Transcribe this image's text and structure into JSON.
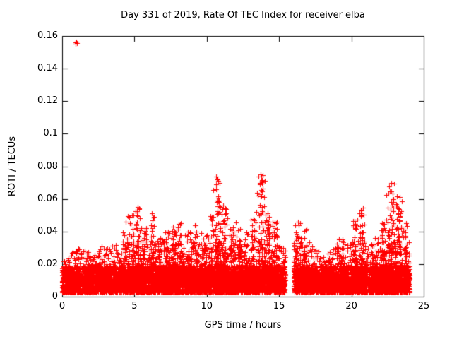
{
  "chart_data": {
    "type": "scatter",
    "title": "Day 331 of 2019, Rate Of TEC Index for receiver elba",
    "xlabel": "GPS time / hours",
    "ylabel": "ROTI / TECUs",
    "xlim": [
      0,
      25
    ],
    "ylim": [
      0,
      0.16
    ],
    "xtick_values": [
      0,
      5,
      10,
      15,
      20,
      25
    ],
    "xtick_labels": [
      "0",
      "5",
      "10",
      "15",
      "20",
      "25"
    ],
    "ytick_values": [
      0,
      0.02,
      0.04,
      0.06,
      0.08,
      0.1,
      0.12,
      0.14,
      0.16
    ],
    "ytick_labels": [
      "0",
      "0.02",
      "0.04",
      "0.06",
      "0.08",
      "0.1",
      "0.12",
      "0.14",
      "0.16"
    ],
    "grid": false,
    "legend": "none",
    "marker": "+",
    "marker_color": "#ff0000",
    "axis_color": "#000000",
    "background_color": "#ffffff",
    "data_x_range": [
      0,
      24.05
    ],
    "data_gap_hours": [
      15.45,
      16.0
    ],
    "outlier_points": [
      [
        0.93,
        0.156
      ],
      [
        0.98,
        0.1565
      ],
      [
        1.02,
        0.1558
      ],
      [
        0.95,
        0.1552
      ]
    ],
    "base_band": {
      "ymin": 0.0025,
      "ymax": 0.019,
      "points": 7000
    },
    "mid_band": {
      "points": 2200,
      "cap": 0.034
    },
    "envelope_max_by_halfhour": [
      [
        0.25,
        0.022
      ],
      [
        0.75,
        0.028
      ],
      [
        1.25,
        0.03
      ],
      [
        1.75,
        0.028
      ],
      [
        2.25,
        0.026
      ],
      [
        2.75,
        0.032
      ],
      [
        3.25,
        0.03
      ],
      [
        3.75,
        0.034
      ],
      [
        4.25,
        0.04
      ],
      [
        4.75,
        0.05
      ],
      [
        5.25,
        0.055
      ],
      [
        5.75,
        0.042
      ],
      [
        6.25,
        0.052
      ],
      [
        6.75,
        0.036
      ],
      [
        7.25,
        0.04
      ],
      [
        7.75,
        0.044
      ],
      [
        8.25,
        0.046
      ],
      [
        8.75,
        0.04
      ],
      [
        9.25,
        0.044
      ],
      [
        9.75,
        0.04
      ],
      [
        10.25,
        0.05
      ],
      [
        10.75,
        0.075
      ],
      [
        11.25,
        0.056
      ],
      [
        11.75,
        0.046
      ],
      [
        12.25,
        0.042
      ],
      [
        12.75,
        0.04
      ],
      [
        13.25,
        0.048
      ],
      [
        13.75,
        0.075
      ],
      [
        14.25,
        0.052
      ],
      [
        14.75,
        0.046
      ],
      [
        15.25,
        0.03
      ],
      [
        16.25,
        0.046
      ],
      [
        16.75,
        0.042
      ],
      [
        17.25,
        0.032
      ],
      [
        17.75,
        0.028
      ],
      [
        18.25,
        0.026
      ],
      [
        18.75,
        0.03
      ],
      [
        19.25,
        0.036
      ],
      [
        19.75,
        0.034
      ],
      [
        20.25,
        0.048
      ],
      [
        20.75,
        0.055
      ],
      [
        21.25,
        0.032
      ],
      [
        21.75,
        0.036
      ],
      [
        22.25,
        0.046
      ],
      [
        22.75,
        0.07
      ],
      [
        23.25,
        0.062
      ],
      [
        23.75,
        0.046
      ]
    ]
  }
}
